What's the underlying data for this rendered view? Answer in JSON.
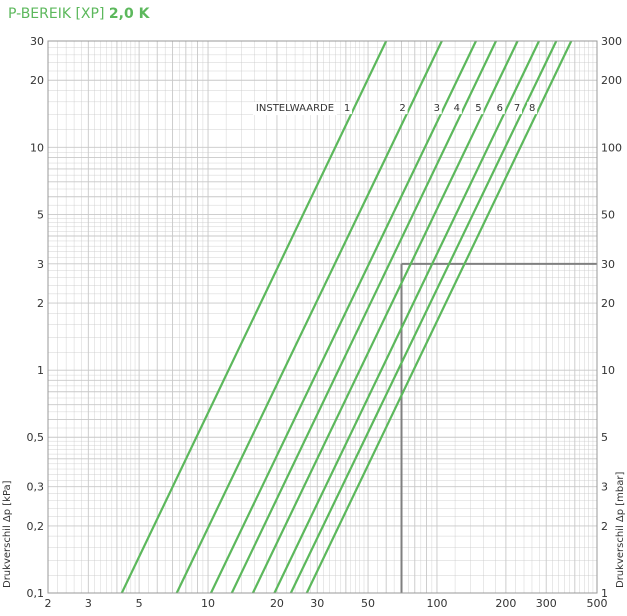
{
  "header": {
    "title_prefix": "P-BEREIK [XP]",
    "title_value": "2,0 K"
  },
  "colors": {
    "curve": "#5cb85c",
    "title": "#5cb85c",
    "grid": "#c8c8c8",
    "marker": "#808080"
  },
  "chart_data": {
    "type": "line",
    "title": "P-BEREIK [XP] 2,0 K",
    "xscale": "log",
    "yscale": "log",
    "xlim": [
      2,
      500
    ],
    "ylim": [
      0.1,
      30
    ],
    "grid": true,
    "x_tick_labels": [
      "2",
      "3",
      "5",
      "10",
      "20",
      "30",
      "50",
      "100",
      "200",
      "300",
      "500"
    ],
    "x_tick_values": [
      2,
      3,
      5,
      10,
      20,
      30,
      50,
      100,
      200,
      300,
      500
    ],
    "y_left_label": "Drukverschil Δp [kPa]",
    "y_left_tick_labels": [
      "0,1",
      "0,2",
      "0,3",
      "0,5",
      "1",
      "2",
      "3",
      "5",
      "10",
      "20",
      "30"
    ],
    "y_left_tick_values": [
      0.1,
      0.2,
      0.3,
      0.5,
      1,
      2,
      3,
      5,
      10,
      20,
      30
    ],
    "y_right_label": "Drukverschil Δp [mbar]",
    "y_right_tick_labels": [
      "1",
      "2",
      "3",
      "5",
      "10",
      "20",
      "30",
      "50",
      "100",
      "200",
      "300"
    ],
    "setting_label": "INSTELWAARDE",
    "series": [
      {
        "name": "1",
        "x": [
          4.2,
          60
        ],
        "y": [
          0.1,
          30
        ]
      },
      {
        "name": "2",
        "x": [
          7.3,
          105
        ],
        "y": [
          0.1,
          30
        ]
      },
      {
        "name": "3",
        "x": [
          10.3,
          148
        ],
        "y": [
          0.1,
          30
        ]
      },
      {
        "name": "4",
        "x": [
          12.7,
          181
        ],
        "y": [
          0.1,
          30
        ]
      },
      {
        "name": "5",
        "x": [
          15.7,
          225
        ],
        "y": [
          0.1,
          30
        ]
      },
      {
        "name": "6",
        "x": [
          19.5,
          279
        ],
        "y": [
          0.1,
          30
        ]
      },
      {
        "name": "7",
        "x": [
          23,
          332
        ],
        "y": [
          0.1,
          30
        ]
      },
      {
        "name": "8",
        "x": [
          27,
          386
        ],
        "y": [
          0.1,
          30
        ]
      }
    ],
    "example_point": {
      "x": 70,
      "y": 3
    }
  }
}
